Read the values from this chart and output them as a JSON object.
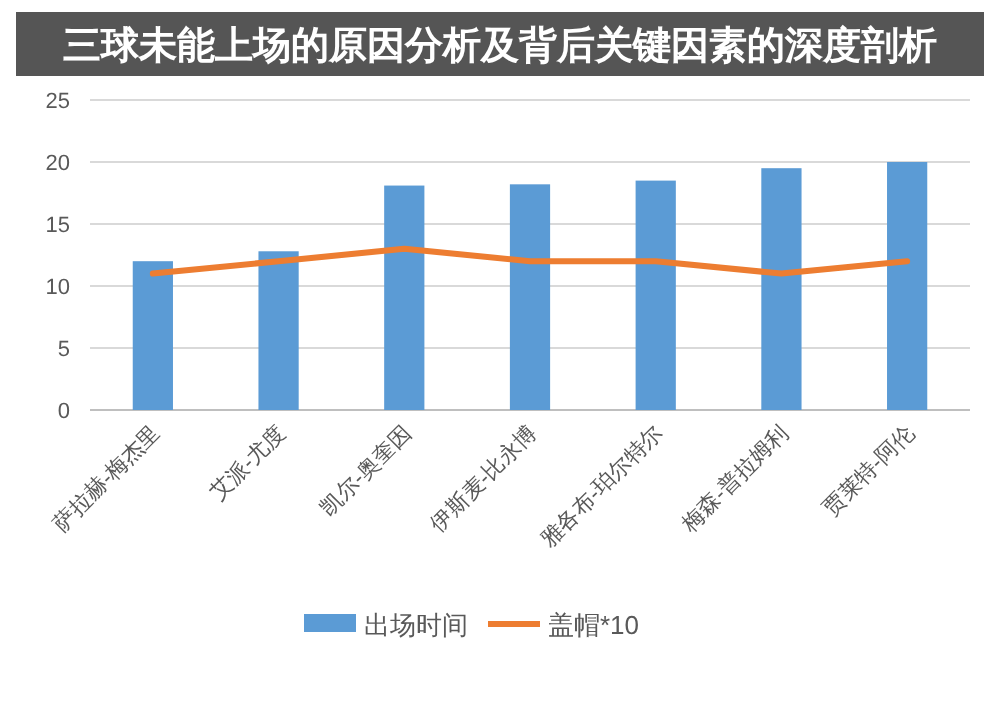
{
  "chart_data": {
    "type": "bar",
    "title": "三球未能上场的原因分析及背后关键因素的深度剖析",
    "categories": [
      "萨拉赫-梅杰里",
      "艾派-尤度",
      "凯尔-奥奎因",
      "伊斯麦-比永博",
      "雅各布-珀尔特尔",
      "梅森-普拉姆利",
      "贾莱特-阿伦"
    ],
    "series": [
      {
        "name": "出场时间",
        "color": "#5b9bd5",
        "values": [
          12,
          12.8,
          18.1,
          18.2,
          18.5,
          19.5,
          20
        ]
      },
      {
        "name": "盖帽*10",
        "type": "line",
        "color": "#ed7d31",
        "values": [
          11,
          12,
          13,
          12,
          12,
          11,
          12
        ]
      }
    ],
    "ylim": [
      0,
      25
    ],
    "yticks": [
      0,
      5,
      10,
      15,
      20,
      25
    ],
    "grid": "y",
    "legend": "bottom",
    "marker": "none"
  }
}
